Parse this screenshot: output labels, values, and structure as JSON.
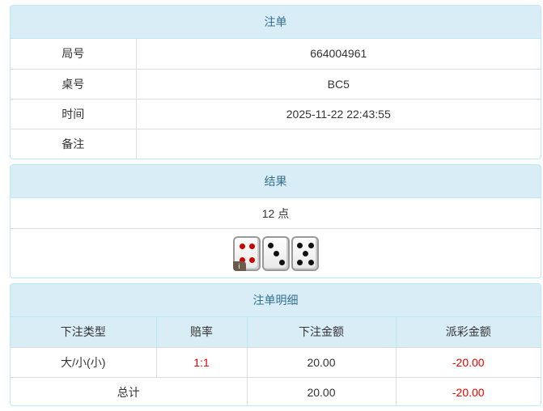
{
  "order": {
    "title": "注单",
    "rows": [
      {
        "label": "局号",
        "value": "664004961"
      },
      {
        "label": "桌号",
        "value": "BC5"
      },
      {
        "label": "时间",
        "value": "2025-11-22 22:43:55"
      },
      {
        "label": "备注",
        "value": ""
      }
    ]
  },
  "result": {
    "title": "结果",
    "points": "12 点",
    "dice": [
      4,
      3,
      5
    ],
    "info_badge": "i"
  },
  "detail": {
    "title": "注单明细",
    "headers": [
      "下注类型",
      "赔率",
      "下注金额",
      "派彩金额"
    ],
    "rows": [
      {
        "type": "大/小(小)",
        "odds": "1:1",
        "bet": "20.00",
        "payout": "-20.00"
      }
    ],
    "total": {
      "label": "总计",
      "bet": "20.00",
      "payout": "-20.00"
    }
  },
  "colors": {
    "header_bg": "#d9edf7",
    "header_text": "#31708f",
    "negative": "#ee0000"
  }
}
